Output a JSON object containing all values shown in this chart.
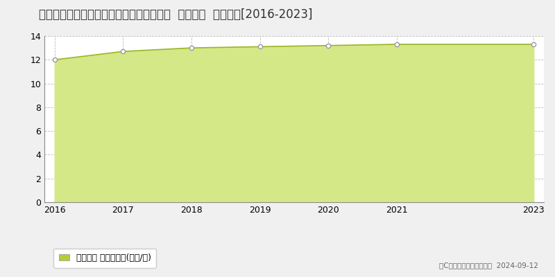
{
  "title": "福島県いわき市内郷高坂町桜井４３番７外  地価公示  地価推移[2016-2023]",
  "years": [
    2016,
    2017,
    2018,
    2019,
    2020,
    2021,
    2023
  ],
  "values": [
    12.0,
    12.7,
    13.0,
    13.1,
    13.2,
    13.3,
    13.3
  ],
  "ylim": [
    0,
    14
  ],
  "yticks": [
    0,
    2,
    4,
    6,
    8,
    10,
    12,
    14
  ],
  "line_color": "#9ab526",
  "fill_color": "#d4e887",
  "marker_face": "#ffffff",
  "marker_edge": "#999999",
  "bg_color": "#f0f0f0",
  "plot_bg_color": "#ffffff",
  "grid_color": "#bbbbbb",
  "legend_label": "地価公示 平均坪単価(万円/坪)",
  "legend_color": "#b8cc30",
  "copyright_text": "（C）土地価格ドットコム  2024-09-12",
  "title_fontsize": 12,
  "tick_fontsize": 9,
  "legend_fontsize": 9
}
